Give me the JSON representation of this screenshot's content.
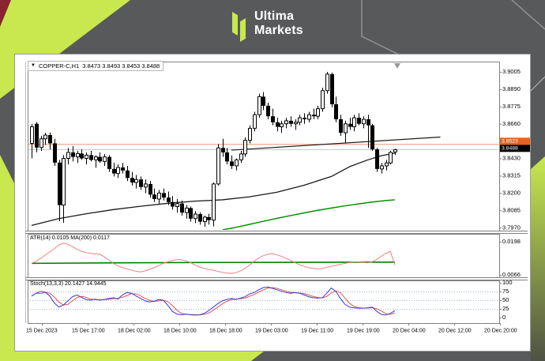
{
  "header": {
    "brand_line1": "Ultima",
    "brand_line2": "Markets"
  },
  "chart": {
    "title": {
      "collapse_glyph": "▼",
      "symbol": "COPPER-C,H1",
      "ohlc": "3.8473 3.8493 3.8453 3.8488"
    },
    "indicators": {
      "atr_label": "ATR(14) 0.0105",
      "atr_ma_label": "MA(200) 0.0117",
      "stoch_label": "Stoch(13,3,3) 20.1427 14.9445"
    }
  },
  "colors": {
    "background": "#58595b",
    "lime": "#c9e84f",
    "maroon": "#8a2430",
    "chart_bg": "#ffffff",
    "frame": "#9a9a9a",
    "inner_frame": "#808080",
    "bull": "#ffffff",
    "bear": "#000000",
    "candle_stroke": "#000000",
    "ma_black": "#1a1a1a",
    "ma_green": "#089000",
    "trendline": "#1a1a1a",
    "orange_line": "#f2926b",
    "orange_badge": "#e8611c",
    "price_badge_bg": "#000000",
    "badge_text": "#ffffff",
    "current_line": "#c8c8c8",
    "atr_line": "#f08080",
    "atr_ma": "#007f00",
    "stoch_k": "#3a3ad0",
    "stoch_d": "#e05555",
    "stoch_grid": "#9fb4d8",
    "axis_text": "#000000",
    "shift_marker": "#999999",
    "outline_line": "#8f9093"
  },
  "chart_data": {
    "type": "candlestick",
    "symbol": "COPPER-C,H1",
    "timeframe": "H1",
    "ohlc_display": {
      "open": 3.8473,
      "high": 3.8493,
      "low": 3.8453,
      "close": 3.8488
    },
    "time_labels": [
      "15 Dec 2023",
      "15 Dec 17:00",
      "18 Dec 02:00",
      "18 Dec 10:00",
      "18 Dec 18:00",
      "19 Dec 03:00",
      "19 Dec 11:00",
      "19 Dec 19:00",
      "20 Dec 04:00",
      "20 Dec 12:00",
      "20 Dec 20:00"
    ],
    "main_pane": {
      "ylim": [
        3.795,
        3.9073
      ],
      "price_ticks": [
        3.9005,
        3.889,
        3.8775,
        3.866,
        3.8545,
        3.843,
        3.8315,
        3.82,
        3.8085,
        3.797
      ],
      "alert_price": "3.8523",
      "current_price": "3.8488",
      "alert_value": 3.8523,
      "current_value": 3.8488,
      "trendline": {
        "from": [
          44,
          3.8485
        ],
        "to": [
          90,
          3.8572
        ]
      },
      "ma_black_points": [
        [
          0,
          3.7985
        ],
        [
          6,
          3.803
        ],
        [
          12,
          3.8062
        ],
        [
          18,
          3.809
        ],
        [
          24,
          3.8112
        ],
        [
          30,
          3.8132
        ],
        [
          36,
          3.8146
        ],
        [
          42,
          3.8155
        ],
        [
          48,
          3.8175
        ],
        [
          54,
          3.8205
        ],
        [
          60,
          3.8252
        ],
        [
          66,
          3.831
        ],
        [
          70,
          3.8375
        ],
        [
          74,
          3.842
        ],
        [
          77,
          3.8448
        ],
        [
          80,
          3.8465
        ]
      ],
      "ma_green_points": [
        [
          42,
          3.7955
        ],
        [
          45,
          3.7972
        ],
        [
          48,
          3.7992
        ],
        [
          51,
          3.8012
        ],
        [
          54,
          3.8032
        ],
        [
          57,
          3.805
        ],
        [
          60,
          3.8068
        ],
        [
          63,
          3.8085
        ],
        [
          66,
          3.81
        ],
        [
          69,
          3.8115
        ],
        [
          72,
          3.8128
        ],
        [
          75,
          3.814
        ],
        [
          78,
          3.815
        ],
        [
          80,
          3.8155
        ]
      ],
      "candles": [
        [
          3.853,
          3.866,
          3.843,
          3.864
        ],
        [
          3.866,
          3.8672,
          3.847,
          3.8502
        ],
        [
          3.8502,
          3.858,
          3.848,
          3.856
        ],
        [
          3.856,
          3.86,
          3.852,
          3.8585
        ],
        [
          3.8585,
          3.8602,
          3.849,
          3.853
        ],
        [
          3.853,
          3.856,
          3.838,
          3.8402
        ],
        [
          3.8402,
          3.842,
          3.8012,
          3.812
        ],
        [
          3.812,
          3.8452,
          3.8002,
          3.843
        ],
        [
          3.843,
          3.85,
          3.839,
          3.847
        ],
        [
          3.847,
          3.8512,
          3.841,
          3.844
        ],
        [
          3.844,
          3.848,
          3.84,
          3.8462
        ],
        [
          3.8462,
          3.849,
          3.842,
          3.843
        ],
        [
          3.843,
          3.847,
          3.839,
          3.8452
        ],
        [
          3.8452,
          3.848,
          3.841,
          3.842
        ],
        [
          3.842,
          3.845,
          3.8368,
          3.844
        ],
        [
          3.844,
          3.847,
          3.84,
          3.841
        ],
        [
          3.841,
          3.846,
          3.838,
          3.844
        ],
        [
          3.844,
          3.8452,
          3.834,
          3.836
        ],
        [
          3.836,
          3.84,
          3.831,
          3.833
        ],
        [
          3.833,
          3.839,
          3.83,
          3.837
        ],
        [
          3.837,
          3.84,
          3.833,
          3.835
        ],
        [
          3.835,
          3.838,
          3.828,
          3.83
        ],
        [
          3.83,
          3.834,
          3.825,
          3.827
        ],
        [
          3.827,
          3.832,
          3.823,
          3.829
        ],
        [
          3.829,
          3.831,
          3.822,
          3.824
        ],
        [
          3.824,
          3.829,
          3.82,
          3.826
        ],
        [
          3.826,
          3.828,
          3.817,
          3.819
        ],
        [
          3.819,
          3.823,
          3.814,
          3.816
        ],
        [
          3.816,
          3.822,
          3.813,
          3.82
        ],
        [
          3.82,
          3.823,
          3.815,
          3.817
        ],
        [
          3.817,
          3.821,
          3.812,
          3.814
        ],
        [
          3.814,
          3.818,
          3.809,
          3.811
        ],
        [
          3.811,
          3.816,
          3.807,
          3.813
        ],
        [
          3.813,
          3.815,
          3.805,
          3.807
        ],
        [
          3.807,
          3.812,
          3.803,
          3.81
        ],
        [
          3.81,
          3.811,
          3.801,
          3.803
        ],
        [
          3.803,
          3.808,
          3.8,
          3.806
        ],
        [
          3.806,
          3.8072,
          3.799,
          3.801
        ],
        [
          3.801,
          3.805,
          3.7975,
          3.804
        ],
        [
          3.804,
          3.8062,
          3.799,
          3.802
        ],
        [
          3.802,
          3.827,
          3.7978,
          3.826
        ],
        [
          3.826,
          3.8525,
          3.825,
          3.85
        ],
        [
          3.85,
          3.856,
          3.844,
          3.847
        ],
        [
          3.847,
          3.85,
          3.839,
          3.841
        ],
        [
          3.841,
          3.845,
          3.836,
          3.838
        ],
        [
          3.838,
          3.843,
          3.835,
          3.842
        ],
        [
          3.842,
          3.848,
          3.84,
          3.846
        ],
        [
          3.846,
          3.857,
          3.844,
          3.855
        ],
        [
          3.855,
          3.865,
          3.853,
          3.863
        ],
        [
          3.863,
          3.874,
          3.861,
          3.872
        ],
        [
          3.872,
          3.886,
          3.87,
          3.884
        ],
        [
          3.884,
          3.887,
          3.875,
          3.878
        ],
        [
          3.878,
          3.88,
          3.869,
          3.871
        ],
        [
          3.871,
          3.876,
          3.865,
          3.867
        ],
        [
          3.867,
          3.87,
          3.861,
          3.864
        ],
        [
          3.864,
          3.868,
          3.86,
          3.866
        ],
        [
          3.866,
          3.87,
          3.863,
          3.868
        ],
        [
          3.868,
          3.871,
          3.864,
          3.866
        ],
        [
          3.866,
          3.869,
          3.862,
          3.867
        ],
        [
          3.867,
          3.872,
          3.865,
          3.87
        ],
        [
          3.87,
          3.873,
          3.866,
          3.869
        ],
        [
          3.869,
          3.874,
          3.867,
          3.872
        ],
        [
          3.872,
          3.876,
          3.869,
          3.871
        ],
        [
          3.871,
          3.878,
          3.869,
          3.876
        ],
        [
          3.876,
          3.89,
          3.874,
          3.888
        ],
        [
          3.888,
          3.9005,
          3.886,
          3.899
        ],
        [
          3.899,
          3.9,
          3.877,
          3.879
        ],
        [
          3.879,
          3.884,
          3.867,
          3.869
        ],
        [
          3.869,
          3.872,
          3.858,
          3.86
        ],
        [
          3.86,
          3.868,
          3.853,
          3.866
        ],
        [
          3.866,
          3.87,
          3.862,
          3.864
        ],
        [
          3.864,
          3.872,
          3.861,
          3.87
        ],
        [
          3.87,
          3.873,
          3.865,
          3.866
        ],
        [
          3.866,
          3.871,
          3.863,
          3.869
        ],
        [
          3.869,
          3.872,
          3.85,
          3.865
        ],
        [
          3.865,
          3.866,
          3.848,
          3.849
        ],
        [
          3.849,
          3.85,
          3.834,
          3.836
        ],
        [
          3.836,
          3.84,
          3.833,
          3.838
        ],
        [
          3.838,
          3.842,
          3.835,
          3.84
        ],
        [
          3.84,
          3.848,
          3.839,
          3.847
        ],
        [
          3.8473,
          3.8493,
          3.8453,
          3.8488
        ]
      ]
    },
    "atr_pane": {
      "ticks": [
        0.0198,
        0.0066
      ],
      "current": 0.0105,
      "ma_current": 0.0117,
      "ma_points": [
        [
          0,
          0.0112
        ],
        [
          20,
          0.0114
        ],
        [
          40,
          0.01155
        ],
        [
          60,
          0.0116
        ],
        [
          80,
          0.0117
        ]
      ],
      "values": [
        0.0112,
        0.012,
        0.0132,
        0.0145,
        0.0158,
        0.017,
        0.0185,
        0.0192,
        0.0188,
        0.0178,
        0.0168,
        0.016,
        0.0155,
        0.0152,
        0.015,
        0.0148,
        0.0138,
        0.0125,
        0.0112,
        0.0102,
        0.0095,
        0.009,
        0.0085,
        0.008,
        0.0078,
        0.0082,
        0.0088,
        0.0095,
        0.0103,
        0.0112,
        0.0118,
        0.0123,
        0.0127,
        0.0126,
        0.0122,
        0.0115,
        0.0105,
        0.0097,
        0.0092,
        0.0088,
        0.0085,
        0.008,
        0.0076,
        0.0073,
        0.0072,
        0.0075,
        0.0082,
        0.0092,
        0.0105,
        0.012,
        0.0133,
        0.0142,
        0.0148,
        0.015,
        0.0146,
        0.014,
        0.0132,
        0.0124,
        0.0115,
        0.0106,
        0.01,
        0.0095,
        0.0092,
        0.009,
        0.0092,
        0.0096,
        0.01,
        0.0104,
        0.0108,
        0.0112,
        0.0115,
        0.0118,
        0.0118,
        0.0116,
        0.0114,
        0.0118,
        0.0128,
        0.014,
        0.0152,
        0.016,
        0.0105
      ]
    },
    "stoch_pane": {
      "ticks": [
        100,
        75,
        50,
        25,
        0
      ],
      "levels": [
        75,
        50,
        25
      ],
      "k_current": 20.1427,
      "d_current": 14.9445,
      "k_values": [
        62,
        70,
        75,
        73,
        62,
        42,
        30,
        36,
        48,
        60,
        65,
        58,
        52,
        50,
        53,
        50,
        52,
        55,
        57,
        53,
        65,
        72,
        70,
        62,
        55,
        48,
        45,
        47,
        52,
        50,
        35,
        18,
        10,
        8,
        10,
        8,
        7,
        8,
        12,
        20,
        30,
        40,
        48,
        52,
        55,
        52,
        56,
        60,
        68,
        72,
        80,
        86,
        88,
        84,
        80,
        76,
        72,
        70,
        72,
        70,
        65,
        60,
        57,
        56,
        57,
        70,
        85,
        75,
        55,
        38,
        30,
        28,
        27,
        27,
        28,
        30,
        18,
        9,
        7,
        12,
        20
      ]
    }
  }
}
